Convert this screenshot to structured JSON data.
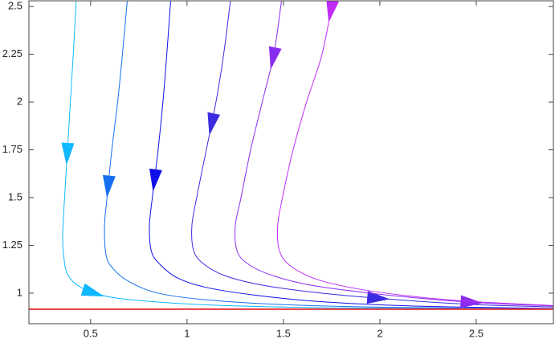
{
  "chart_data": {
    "type": "line",
    "xlim": [
      0.18,
      2.9
    ],
    "ylim": [
      0.84,
      2.53
    ],
    "xticks": [
      0.5,
      1,
      1.5,
      2,
      2.5
    ],
    "yticks": [
      1,
      1.25,
      1.5,
      1.75,
      2,
      2.25,
      2.5
    ],
    "hlines": [
      {
        "value": 0.916,
        "color": "#e8383d"
      }
    ],
    "series": [
      {
        "color": "#10b8ff",
        "x": [
          0.425,
          0.41,
          0.395,
          0.38,
          0.365,
          0.355,
          0.36,
          0.38,
          0.45,
          0.6,
          0.9,
          1.3,
          1.9,
          2.9
        ],
        "values": [
          2.53,
          2.25,
          2.0,
          1.75,
          1.5,
          1.3,
          1.2,
          1.1,
          1.03,
          0.98,
          0.95,
          0.932,
          0.922,
          0.918
        ]
      },
      {
        "color": "#1470f0",
        "x": [
          0.69,
          0.665,
          0.64,
          0.61,
          0.585,
          0.572,
          0.58,
          0.615,
          0.7,
          0.85,
          1.1,
          1.5,
          2.1,
          2.9
        ],
        "values": [
          2.53,
          2.25,
          2.0,
          1.75,
          1.5,
          1.35,
          1.2,
          1.13,
          1.06,
          1.0,
          0.965,
          0.94,
          0.925,
          0.919
        ]
      },
      {
        "color": "#1010e8",
        "x": [
          0.915,
          0.895,
          0.875,
          0.85,
          0.82,
          0.805,
          0.815,
          0.86,
          0.95,
          1.1,
          1.35,
          1.7,
          2.2,
          2.9
        ],
        "values": [
          2.53,
          2.25,
          2.0,
          1.75,
          1.5,
          1.35,
          1.22,
          1.15,
          1.08,
          1.03,
          0.99,
          0.955,
          0.932,
          0.92
        ]
      },
      {
        "color": "#3a2ce0",
        "x": [
          1.225,
          1.19,
          1.15,
          1.1,
          1.05,
          1.025,
          1.035,
          1.09,
          1.2,
          1.4,
          1.7,
          2.1,
          2.5,
          2.9
        ],
        "values": [
          2.53,
          2.25,
          2.0,
          1.75,
          1.5,
          1.35,
          1.22,
          1.15,
          1.09,
          1.04,
          1.0,
          0.965,
          0.94,
          0.928
        ]
      },
      {
        "color": "#8a2cf0",
        "x": [
          1.49,
          1.45,
          1.39,
          1.33,
          1.28,
          1.25,
          1.26,
          1.32,
          1.45,
          1.65,
          1.95,
          2.3,
          2.6,
          2.9
        ],
        "values": [
          2.53,
          2.25,
          2.0,
          1.75,
          1.5,
          1.35,
          1.22,
          1.15,
          1.09,
          1.04,
          1.0,
          0.965,
          0.945,
          0.933
        ]
      },
      {
        "color": "#c02cf5",
        "x": [
          1.755,
          1.7,
          1.62,
          1.55,
          1.495,
          1.47,
          1.48,
          1.54,
          1.68,
          1.9,
          2.2,
          2.5,
          2.9
        ],
        "values": [
          2.53,
          2.25,
          2.0,
          1.75,
          1.5,
          1.35,
          1.22,
          1.14,
          1.07,
          1.02,
          0.98,
          0.955,
          0.935
        ]
      }
    ]
  }
}
